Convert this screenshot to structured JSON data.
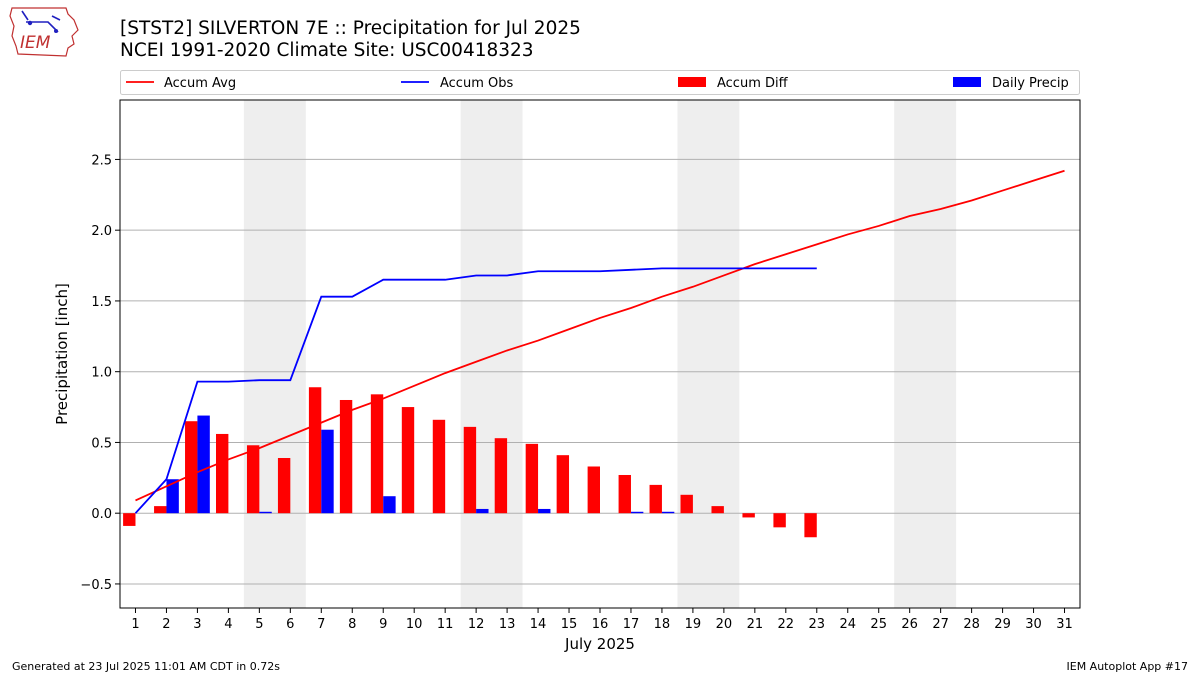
{
  "header": {
    "title_line1": "[STST2] SILVERTON 7E :: Precipitation for Jul 2025",
    "title_line2": "NCEI 1991-2020 Climate Site: USC00418323"
  },
  "logo": {
    "text": "IEM",
    "icon": "iem-iowa-logo-icon"
  },
  "footer": {
    "left": "Generated at 23 Jul 2025 11:01 AM CDT in 0.72s",
    "right": "IEM Autoplot App #17"
  },
  "colors": {
    "avg": "#ff0000",
    "obs": "#0000ff",
    "diff": "#ff0000",
    "daily": "#0000ff",
    "weekend": "#eeeeee",
    "grid": "#b0b0b0"
  },
  "chart_data": {
    "type": "bar",
    "xlabel": "July 2025",
    "ylabel": "Precipitation [inch]",
    "xlim": [
      0.5,
      31.5
    ],
    "ylim": [
      -0.67,
      2.92
    ],
    "yticks": [
      -0.5,
      0.0,
      0.5,
      1.0,
      1.5,
      2.0,
      2.5
    ],
    "ytick_labels": [
      "−0.5",
      "0.0",
      "0.5",
      "1.0",
      "1.5",
      "2.0",
      "2.5"
    ],
    "x": [
      1,
      2,
      3,
      4,
      5,
      6,
      7,
      8,
      9,
      10,
      11,
      12,
      13,
      14,
      15,
      16,
      17,
      18,
      19,
      20,
      21,
      22,
      23,
      24,
      25,
      26,
      27,
      28,
      29,
      30,
      31
    ],
    "x_labels": [
      "1",
      "2",
      "3",
      "4",
      "5",
      "6",
      "7",
      "8",
      "9",
      "10",
      "11",
      "12",
      "13",
      "14",
      "15",
      "16",
      "17",
      "18",
      "19",
      "20",
      "21",
      "22",
      "23",
      "24",
      "25",
      "26",
      "27",
      "28",
      "29",
      "30",
      "31"
    ],
    "weekend_spans": [
      [
        4.5,
        6.5
      ],
      [
        11.5,
        13.5
      ],
      [
        18.5,
        20.5
      ],
      [
        25.5,
        27.5
      ]
    ],
    "grid": "y",
    "legend": {
      "placement": "top",
      "entries": [
        {
          "label": "Accum Avg",
          "kind": "line",
          "color": "#ff0000"
        },
        {
          "label": "Accum Obs",
          "kind": "line",
          "color": "#0000ff"
        },
        {
          "label": "Accum Diff",
          "kind": "bar",
          "color": "#ff0000"
        },
        {
          "label": "Daily Precip",
          "kind": "bar",
          "color": "#0000ff"
        }
      ]
    },
    "series": [
      {
        "name": "Accum Avg",
        "type": "line",
        "x": [
          1,
          2,
          3,
          4,
          5,
          6,
          7,
          8,
          9,
          10,
          11,
          12,
          13,
          14,
          15,
          16,
          17,
          18,
          19,
          20,
          21,
          22,
          23,
          24,
          25,
          26,
          27,
          28,
          29,
          30,
          31
        ],
        "values": [
          0.09,
          0.19,
          0.29,
          0.38,
          0.46,
          0.55,
          0.64,
          0.73,
          0.81,
          0.9,
          0.99,
          1.07,
          1.15,
          1.22,
          1.3,
          1.38,
          1.45,
          1.53,
          1.6,
          1.68,
          1.76,
          1.83,
          1.9,
          1.97,
          2.03,
          2.1,
          2.15,
          2.21,
          2.28,
          2.35,
          2.42
        ]
      },
      {
        "name": "Accum Obs",
        "type": "line",
        "x": [
          1,
          2,
          3,
          4,
          5,
          6,
          7,
          8,
          9,
          10,
          11,
          12,
          13,
          14,
          15,
          16,
          17,
          18,
          19,
          20,
          21,
          22,
          23
        ],
        "values": [
          0.0,
          0.24,
          0.93,
          0.93,
          0.94,
          0.94,
          1.53,
          1.53,
          1.65,
          1.65,
          1.65,
          1.68,
          1.68,
          1.71,
          1.71,
          1.71,
          1.72,
          1.73,
          1.73,
          1.73,
          1.73,
          1.73,
          1.73
        ]
      },
      {
        "name": "Accum Diff",
        "type": "bar",
        "x": [
          1,
          2,
          3,
          4,
          5,
          6,
          7,
          8,
          9,
          10,
          11,
          12,
          13,
          14,
          15,
          16,
          17,
          18,
          19,
          20,
          21,
          22,
          23
        ],
        "values": [
          -0.09,
          0.05,
          0.65,
          0.56,
          0.48,
          0.39,
          0.89,
          0.8,
          0.84,
          0.75,
          0.66,
          0.61,
          0.53,
          0.49,
          0.41,
          0.33,
          0.27,
          0.2,
          0.13,
          0.05,
          -0.03,
          -0.1,
          -0.17
        ]
      },
      {
        "name": "Daily Precip",
        "type": "bar",
        "x": [
          1,
          2,
          3,
          4,
          5,
          6,
          7,
          8,
          9,
          10,
          11,
          12,
          13,
          14,
          15,
          16,
          17,
          18,
          19,
          20,
          21,
          22,
          23
        ],
        "values": [
          0.0,
          0.24,
          0.69,
          0.0,
          0.01,
          0.0,
          0.59,
          0.0,
          0.12,
          0.0,
          0.0,
          0.03,
          0.0,
          0.03,
          0.0,
          0.0,
          0.01,
          0.01,
          0.0,
          0.0,
          0.0,
          0.0,
          0.0
        ]
      }
    ]
  }
}
